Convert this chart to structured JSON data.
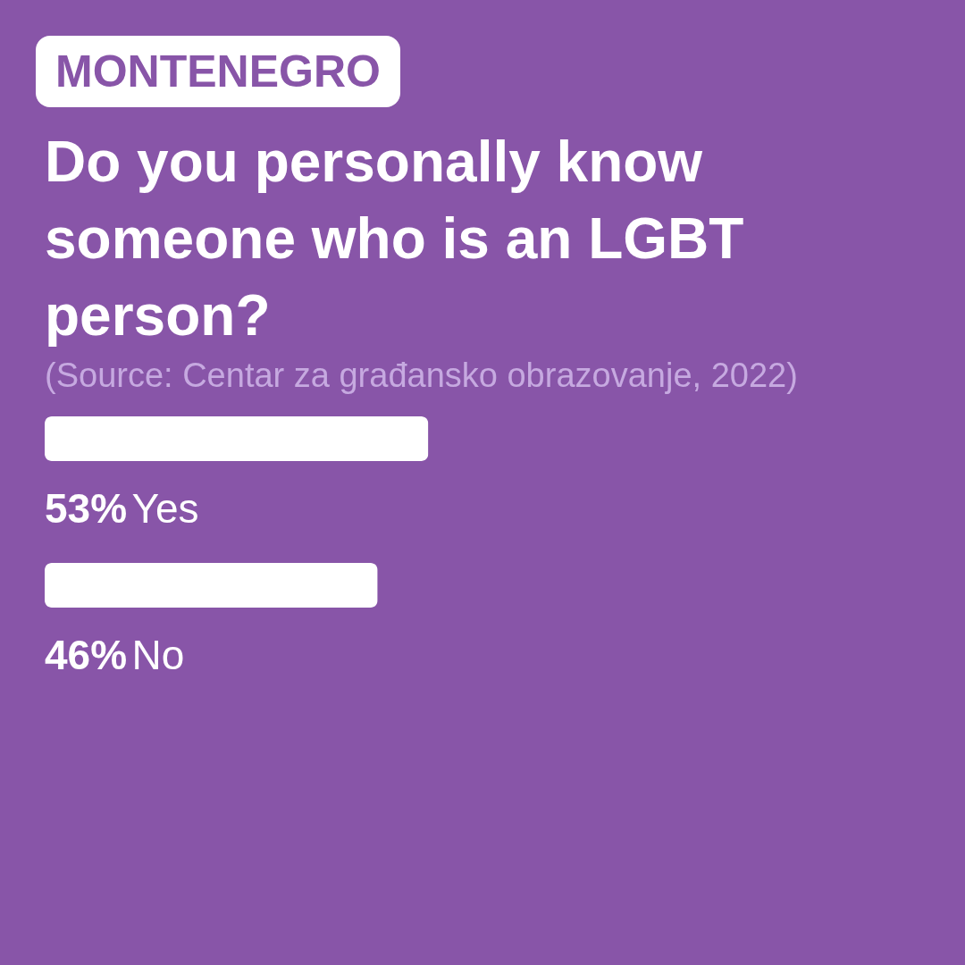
{
  "chart_data": {
    "type": "bar",
    "orientation": "horizontal",
    "subtitle": "MONTENEGRO",
    "title": "Do you personally know someone who is an LGBT person?",
    "annotations": [
      "(Source: Centar za građansko obrazovanje, 2022)"
    ],
    "categories": [
      "Yes",
      "No"
    ],
    "values": [
      53,
      46
    ],
    "value_labels": [
      "53%",
      "46%"
    ],
    "color": "#ffffff"
  }
}
